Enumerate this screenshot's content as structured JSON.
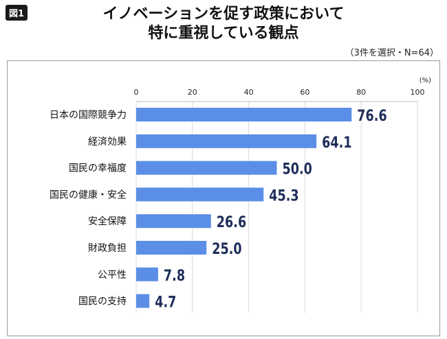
{
  "badge": "図1",
  "title_line1": "イノベーションを促す政策において",
  "title_line2": "特に重視している観点",
  "note": "（3件を選択・N=64）",
  "colors": {
    "bar": "#5b8ee6",
    "value": "#1e2d5a"
  },
  "chart_data": {
    "type": "bar",
    "orientation": "horizontal",
    "title": "イノベーションを促す政策において特に重視している観点",
    "unit_label": "(%)",
    "xlim": [
      0,
      100
    ],
    "ticks": [
      0,
      20,
      40,
      60,
      80,
      100
    ],
    "grid": true,
    "categories": [
      "日本の国際競争力",
      "経済効果",
      "国民の幸福度",
      "国民の健康・安全",
      "安全保障",
      "財政負担",
      "公平性",
      "国民の支持"
    ],
    "values": [
      76.6,
      64.1,
      50.0,
      45.3,
      26.6,
      25.0,
      7.8,
      4.7
    ],
    "labels": [
      "76.6",
      "64.1",
      "50.0",
      "45.3",
      "26.6",
      "25.0",
      "7.8",
      "4.7"
    ]
  }
}
